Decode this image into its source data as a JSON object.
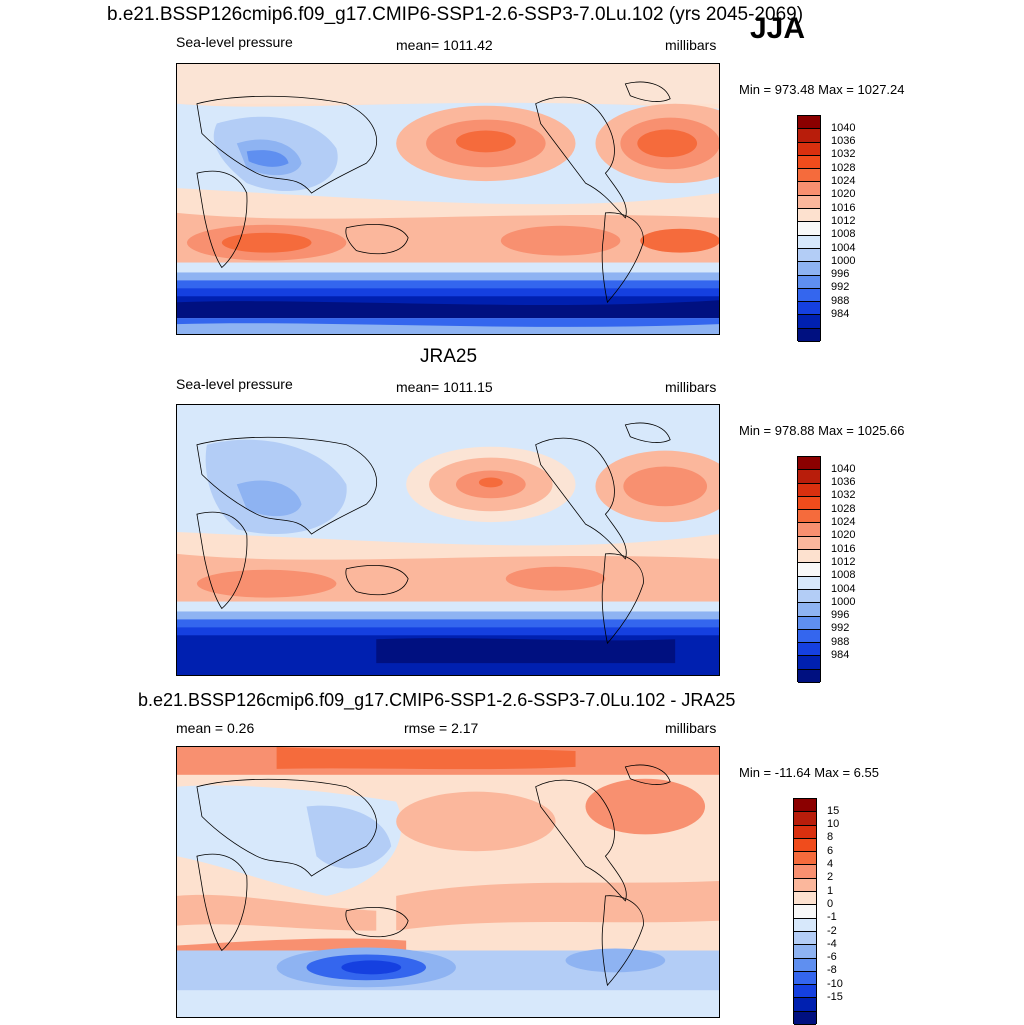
{
  "header": {
    "main_title": "b.e21.BSSP126cmip6.f09_g17.CMIP6-SSP1-2.6-SSP3-7.0Lu.102 (yrs 2045-2069)",
    "season": "JJA"
  },
  "panel1": {
    "variable": "Sea-level pressure",
    "mean": "mean= 1011.42",
    "units": "millibars",
    "minmax": "Min = 973.48 Max = 1027.24",
    "map_name": "model-sea-level-pressure-map"
  },
  "panel2": {
    "title": "JRA25",
    "variable": "Sea-level pressure",
    "mean": "mean= 1011.15",
    "units": "millibars",
    "minmax": "Min = 978.88 Max = 1025.66",
    "map_name": "jra25-sea-level-pressure-map"
  },
  "panel3": {
    "title": "b.e21.BSSP126cmip6.f09_g17.CMIP6-SSP1-2.6-SSP3-7.0Lu.102 - JRA25",
    "mean": "mean =   0.26",
    "rmse": "rmse =   2.17",
    "units": "millibars",
    "minmax": "Min = -11.64 Max =   6.55",
    "map_name": "difference-map"
  },
  "colorbar_slp": {
    "labels": [
      "1040",
      "1036",
      "1032",
      "1028",
      "1024",
      "1020",
      "1016",
      "1012",
      "1008",
      "1004",
      "1000",
      "996",
      "992",
      "988",
      "984"
    ],
    "colors": [
      "#8b0000",
      "#b81d0b",
      "#d9300f",
      "#f04c1c",
      "#f56b3c",
      "#f89070",
      "#fbb79c",
      "#fde1cf",
      "#f8f8f8",
      "#d7e8fb",
      "#b3cdf6",
      "#8eb3f2",
      "#5f8ff0",
      "#3466ee",
      "#1540e0",
      "#0020b0",
      "#001080"
    ]
  },
  "colorbar_diff": {
    "labels": [
      "15",
      "10",
      "8",
      "6",
      "4",
      "2",
      "1",
      "0",
      "-1",
      "-2",
      "-4",
      "-6",
      "-8",
      "-10",
      "-15"
    ],
    "colors": [
      "#8b0000",
      "#b81d0b",
      "#d9300f",
      "#f04c1c",
      "#f56b3c",
      "#f89070",
      "#fbb79c",
      "#fde1cf",
      "#f8f8f8",
      "#d7e8fb",
      "#b3cdf6",
      "#8eb3f2",
      "#5f8ff0",
      "#3466ee",
      "#1540e0",
      "#0020b0",
      "#001080"
    ]
  }
}
